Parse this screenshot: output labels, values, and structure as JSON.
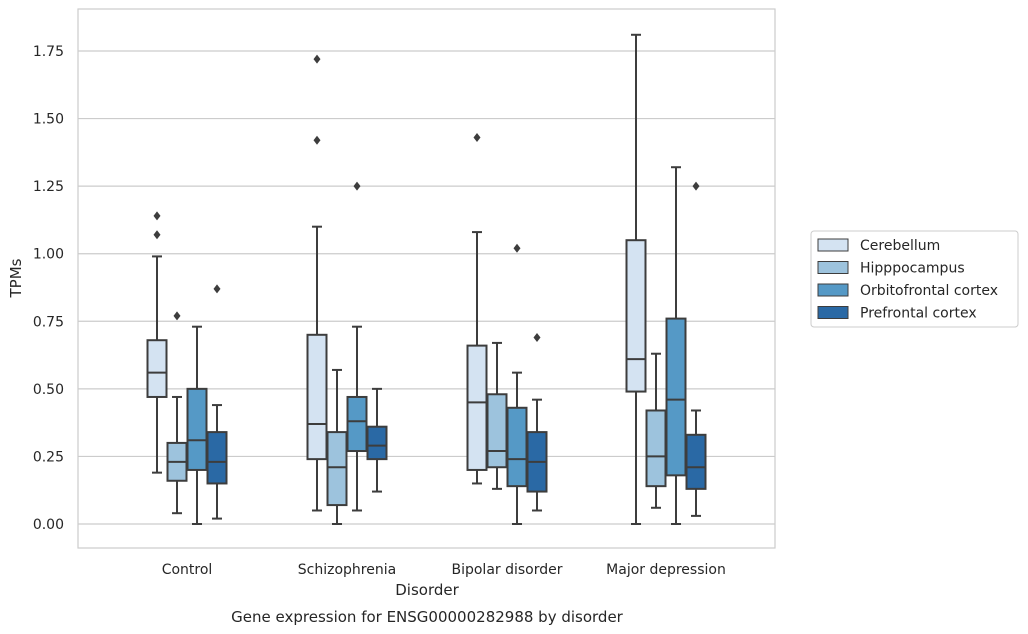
{
  "chart_data": {
    "type": "box",
    "xlabel": "Disorder",
    "ylabel": "TPMs",
    "caption": "Gene expression for ENSG00000282988 by disorder",
    "ylim": [
      -0.09,
      1.9
    ],
    "yticks": [
      "0.00",
      "0.25",
      "0.50",
      "0.75",
      "1.00",
      "1.25",
      "1.50",
      "1.75"
    ],
    "grid": "horizontal",
    "legend_position": "right",
    "categories": [
      "Control",
      "Schizophrenia",
      "Bipolar disorder",
      "Major depression"
    ],
    "series": [
      {
        "name": "Cerebellum",
        "color": "#d4e3f2",
        "boxes": [
          {
            "whislo": 0.19,
            "q1": 0.47,
            "med": 0.56,
            "q3": 0.68,
            "whishi": 0.99,
            "fliers": [
              1.07,
              1.14
            ]
          },
          {
            "whislo": 0.05,
            "q1": 0.24,
            "med": 0.37,
            "q3": 0.7,
            "whishi": 1.1,
            "fliers": [
              1.42,
              1.72
            ]
          },
          {
            "whislo": 0.15,
            "q1": 0.2,
            "med": 0.45,
            "q3": 0.66,
            "whishi": 1.08,
            "fliers": [
              1.43
            ]
          },
          {
            "whislo": 0.0,
            "q1": 0.49,
            "med": 0.61,
            "q3": 1.05,
            "whishi": 1.81,
            "fliers": []
          }
        ]
      },
      {
        "name": "Hipppocampus",
        "color": "#9dc3dd",
        "boxes": [
          {
            "whislo": 0.04,
            "q1": 0.16,
            "med": 0.23,
            "q3": 0.3,
            "whishi": 0.47,
            "fliers": [
              0.77
            ]
          },
          {
            "whislo": 0.0,
            "q1": 0.07,
            "med": 0.21,
            "q3": 0.34,
            "whishi": 0.57,
            "fliers": []
          },
          {
            "whislo": 0.13,
            "q1": 0.21,
            "med": 0.27,
            "q3": 0.48,
            "whishi": 0.67,
            "fliers": []
          },
          {
            "whislo": 0.06,
            "q1": 0.14,
            "med": 0.25,
            "q3": 0.42,
            "whishi": 0.63,
            "fliers": []
          }
        ]
      },
      {
        "name": "Orbitofrontal cortex",
        "color": "#5599c6",
        "boxes": [
          {
            "whislo": 0.0,
            "q1": 0.2,
            "med": 0.31,
            "q3": 0.5,
            "whishi": 0.73,
            "fliers": []
          },
          {
            "whislo": 0.05,
            "q1": 0.27,
            "med": 0.38,
            "q3": 0.47,
            "whishi": 0.73,
            "fliers": [
              1.25
            ]
          },
          {
            "whislo": 0.0,
            "q1": 0.14,
            "med": 0.24,
            "q3": 0.43,
            "whishi": 0.56,
            "fliers": [
              1.02
            ]
          },
          {
            "whislo": 0.0,
            "q1": 0.18,
            "med": 0.46,
            "q3": 0.76,
            "whishi": 1.32,
            "fliers": []
          }
        ]
      },
      {
        "name": "Prefrontal cortex",
        "color": "#2a69a5",
        "boxes": [
          {
            "whislo": 0.02,
            "q1": 0.15,
            "med": 0.23,
            "q3": 0.34,
            "whishi": 0.44,
            "fliers": [
              0.87
            ]
          },
          {
            "whislo": 0.12,
            "q1": 0.24,
            "med": 0.29,
            "q3": 0.36,
            "whishi": 0.5,
            "fliers": []
          },
          {
            "whislo": 0.05,
            "q1": 0.12,
            "med": 0.23,
            "q3": 0.34,
            "whishi": 0.46,
            "fliers": [
              0.69
            ]
          },
          {
            "whislo": 0.03,
            "q1": 0.13,
            "med": 0.21,
            "q3": 0.33,
            "whishi": 0.42,
            "fliers": [
              1.25
            ]
          }
        ]
      }
    ]
  }
}
